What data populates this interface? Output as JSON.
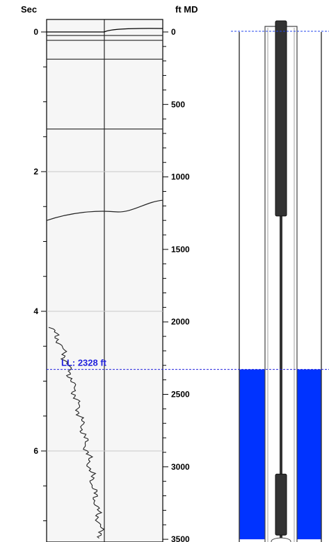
{
  "chart_data": {
    "type": "line",
    "left_axis": {
      "title": "Sec",
      "ylim": [
        0,
        7.25
      ],
      "major_ticks": [
        0,
        2,
        4,
        6
      ],
      "tick_labels": [
        "0",
        "2",
        "4",
        "6"
      ],
      "minor_step": 0.5
    },
    "right_axis": {
      "title": "ft MD",
      "ylim": [
        0,
        3500
      ],
      "major_ticks": [
        0,
        500,
        1000,
        1500,
        2000,
        2500,
        3000,
        3500
      ],
      "tick_labels": [
        "0",
        "500",
        "1000",
        "1500",
        "2000",
        "2500",
        "3000",
        "3500"
      ],
      "minor_step": 100
    },
    "gridlines_sec": [
      2,
      4,
      6
    ],
    "reflections_sec": [
      0,
      0.05,
      0.12,
      0.39,
      1.39
    ],
    "reflection_curve": {
      "left_sec": 2.7,
      "right_sec": 2.41
    },
    "liquid_level": {
      "label": "LL: 2328 ft",
      "depth_ft": 2328,
      "color": "#2222dd"
    },
    "echo_trace": {
      "start_sec": 4.23,
      "end_sec": 7.25,
      "baseline": 0.35
    },
    "wellbore": {
      "top_ft": 0,
      "bottom_ft": 3500,
      "fluid_top_ft": 2328,
      "fluid_color": "#0033ff",
      "rod_top_segment_ft": [
        0,
        1270
      ],
      "rod_bottom_segment_ft": [
        3050,
        3500
      ]
    }
  }
}
